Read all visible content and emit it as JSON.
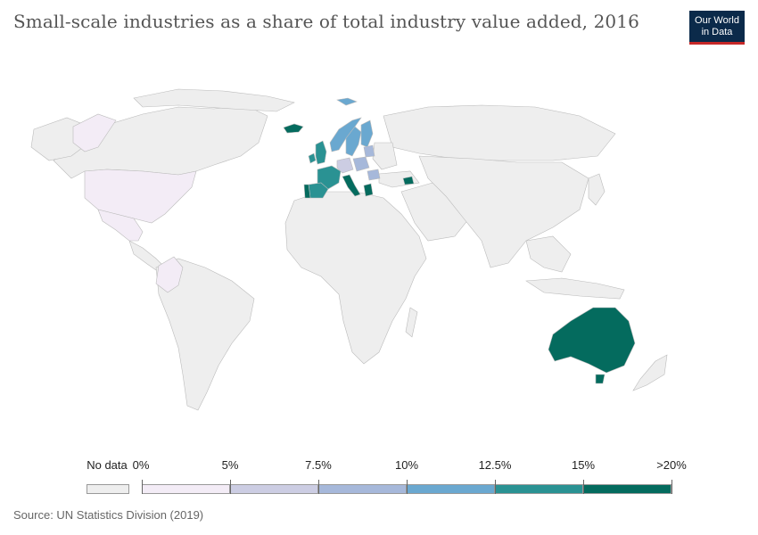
{
  "title": "Small-scale industries as a share of total industry value added, 2016",
  "logo": {
    "line1": "Our World",
    "line2": "in Data"
  },
  "source": "Source: UN Statistics Division (2019)",
  "colors": {
    "no_data": "#eeeeee",
    "bin_0_5": "#f3ecf6",
    "bin_5_7_5": "#cccde3",
    "bin_7_5_10": "#a6b8da",
    "bin_10_12_5": "#6aa8d0",
    "bin_12_5_15": "#2a9293",
    "bin_15_20": "#046b5e",
    "border": "#bbbbbb"
  },
  "legend": {
    "no_data_label": "No data",
    "bins": [
      {
        "label": "0%",
        "color": "#f3ecf6"
      },
      {
        "label": "5%",
        "color": "#cccde3"
      },
      {
        "label": "7.5%",
        "color": "#a6b8da"
      },
      {
        "label": "10%",
        "color": "#6aa8d0"
      },
      {
        "label": "12.5%",
        "color": "#2a9293"
      },
      {
        "label": "15%",
        "color": "#046b5e"
      }
    ],
    "end_label": ">20%"
  },
  "regions": [
    {
      "name": "Australia",
      "bin": "bin_15_20"
    },
    {
      "name": "Tasmania",
      "bin": "bin_15_20"
    },
    {
      "name": "Iceland",
      "bin": "bin_15_20"
    },
    {
      "name": "Portugal",
      "bin": "bin_15_20"
    },
    {
      "name": "Spain",
      "bin": "bin_12_5_15"
    },
    {
      "name": "Italy",
      "bin": "bin_15_20"
    },
    {
      "name": "Greece",
      "bin": "bin_15_20"
    },
    {
      "name": "Georgia",
      "bin": "bin_15_20"
    },
    {
      "name": "France",
      "bin": "bin_12_5_15"
    },
    {
      "name": "United Kingdom",
      "bin": "bin_12_5_15"
    },
    {
      "name": "Ireland",
      "bin": "bin_12_5_15"
    },
    {
      "name": "Norway",
      "bin": "bin_10_12_5"
    },
    {
      "name": "Sweden",
      "bin": "bin_10_12_5"
    },
    {
      "name": "Finland",
      "bin": "bin_10_12_5"
    },
    {
      "name": "Germany",
      "bin": "bin_5_7_5"
    },
    {
      "name": "Poland",
      "bin": "bin_7_5_10"
    },
    {
      "name": "Baltics",
      "bin": "bin_7_5_10"
    },
    {
      "name": "Romania",
      "bin": "bin_7_5_10"
    },
    {
      "name": "United States",
      "bin": "bin_0_5"
    },
    {
      "name": "Mexico",
      "bin": "bin_0_5"
    },
    {
      "name": "Colombia",
      "bin": "bin_0_5"
    },
    {
      "name": "Greenland",
      "bin": "bin_0_5"
    }
  ]
}
